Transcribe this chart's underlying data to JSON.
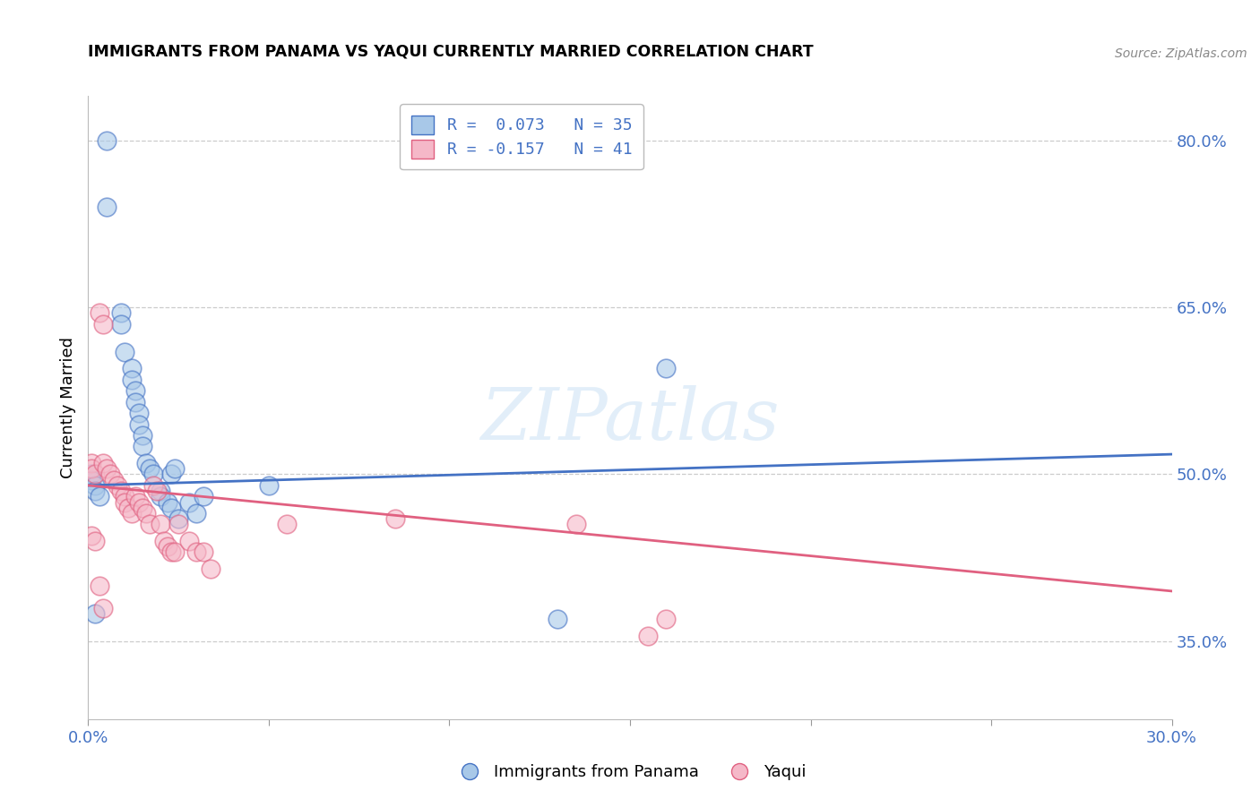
{
  "title": "IMMIGRANTS FROM PANAMA VS YAQUI CURRENTLY MARRIED CORRELATION CHART",
  "source": "Source: ZipAtlas.com",
  "ylabel": "Currently Married",
  "xlim": [
    0.0,
    0.3
  ],
  "ylim": [
    0.28,
    0.84
  ],
  "ytick_positions": [
    0.35,
    0.5,
    0.65,
    0.8
  ],
  "ytick_labels": [
    "35.0%",
    "50.0%",
    "65.0%",
    "80.0%"
  ],
  "xtick_positions": [
    0.0,
    0.05,
    0.1,
    0.15,
    0.2,
    0.25,
    0.3
  ],
  "xtick_labels": [
    "0.0%",
    "",
    "",
    "",
    "",
    "",
    "30.0%"
  ],
  "series1_color": "#a8c8e8",
  "series2_color": "#f5b8c8",
  "line1_color": "#4472c4",
  "line2_color": "#e06080",
  "watermark": "ZIPatlas",
  "legend_label1": "R =  0.073   N = 35",
  "legend_label2": "R = -0.157   N = 41",
  "blue_x": [
    0.005,
    0.005,
    0.009,
    0.009,
    0.01,
    0.012,
    0.012,
    0.013,
    0.013,
    0.014,
    0.014,
    0.015,
    0.015,
    0.016,
    0.017,
    0.018,
    0.02,
    0.02,
    0.022,
    0.023,
    0.023,
    0.024,
    0.025,
    0.028,
    0.03,
    0.032,
    0.05,
    0.001,
    0.001,
    0.002,
    0.002,
    0.003,
    0.16,
    0.002,
    0.13
  ],
  "blue_y": [
    0.8,
    0.74,
    0.645,
    0.635,
    0.61,
    0.595,
    0.585,
    0.575,
    0.565,
    0.555,
    0.545,
    0.535,
    0.525,
    0.51,
    0.505,
    0.5,
    0.485,
    0.48,
    0.475,
    0.47,
    0.5,
    0.505,
    0.46,
    0.475,
    0.465,
    0.48,
    0.49,
    0.5,
    0.495,
    0.49,
    0.485,
    0.48,
    0.595,
    0.375,
    0.37
  ],
  "pink_x": [
    0.001,
    0.001,
    0.002,
    0.003,
    0.004,
    0.004,
    0.005,
    0.006,
    0.007,
    0.008,
    0.009,
    0.01,
    0.01,
    0.011,
    0.012,
    0.013,
    0.014,
    0.015,
    0.016,
    0.017,
    0.018,
    0.019,
    0.02,
    0.021,
    0.022,
    0.023,
    0.024,
    0.025,
    0.028,
    0.03,
    0.032,
    0.034,
    0.055,
    0.085,
    0.135,
    0.155,
    0.001,
    0.002,
    0.003,
    0.004,
    0.16
  ],
  "pink_y": [
    0.51,
    0.505,
    0.5,
    0.645,
    0.635,
    0.51,
    0.505,
    0.5,
    0.495,
    0.49,
    0.485,
    0.48,
    0.475,
    0.47,
    0.465,
    0.48,
    0.475,
    0.47,
    0.465,
    0.455,
    0.49,
    0.485,
    0.455,
    0.44,
    0.435,
    0.43,
    0.43,
    0.455,
    0.44,
    0.43,
    0.43,
    0.415,
    0.455,
    0.46,
    0.455,
    0.355,
    0.445,
    0.44,
    0.4,
    0.38,
    0.37
  ],
  "line1_x": [
    0.0,
    0.3
  ],
  "line1_y": [
    0.49,
    0.518
  ],
  "line2_x": [
    0.0,
    0.3
  ],
  "line2_y": [
    0.49,
    0.395
  ]
}
